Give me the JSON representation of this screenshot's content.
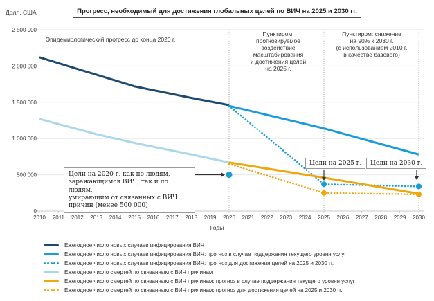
{
  "chart_data": {
    "type": "line",
    "title": "Прогресс, необходимый для достижения глобальных целей по ВИЧ на 2025 и 2030 гг.",
    "y_unit_label": "Долл. США",
    "xlabel": "Годы",
    "ylim": [
      0,
      2500000
    ],
    "grid": true,
    "yticks": [
      {
        "value": 2500000,
        "label": "2 500 000"
      },
      {
        "value": 2000000,
        "label": "2 000 000"
      },
      {
        "value": 1500000,
        "label": "1 500 000"
      },
      {
        "value": 1000000,
        "label": "1 000 000"
      },
      {
        "value": 500000,
        "label": "500 000"
      },
      {
        "value": 0,
        "label": "0"
      }
    ],
    "x_years": [
      2010,
      2011,
      2012,
      2013,
      2014,
      2015,
      2016,
      2017,
      2018,
      2019,
      2020,
      2021,
      2022,
      2023,
      2024,
      2025,
      2026,
      2027,
      2028,
      2029,
      2030
    ],
    "guide_years": [
      2020,
      2025,
      2030
    ],
    "series": [
      {
        "name": "new-infections-actual",
        "label": "Ежегодное число новых случаев инфицирования ВИЧ",
        "color": "#1b4a6e",
        "style": "solid",
        "points": [
          [
            2010,
            2120000
          ],
          [
            2013,
            1880000
          ],
          [
            2015,
            1720000
          ],
          [
            2018,
            1560000
          ],
          [
            2020,
            1460000
          ]
        ]
      },
      {
        "name": "new-infections-forecast-current-services",
        "label": "Ежегодное число новых случаев инфицирования ВИЧ: прогноз в случае поддержания текущего уровня услуг",
        "color": "#1a9cd8",
        "style": "solid",
        "points": [
          [
            2020,
            1450000
          ],
          [
            2025,
            1140000
          ],
          [
            2030,
            780000
          ]
        ]
      },
      {
        "name": "new-infections-target",
        "label": "Ежегодное число новых случаев инфицирования ВИЧ: прогноз для достижения целей на 2025 и 2030 гг.",
        "color": "#1a9cd8",
        "style": "dotted",
        "points": [
          [
            2020,
            1450000
          ],
          [
            2025,
            370000
          ],
          [
            2030,
            340000
          ]
        ],
        "markers": [
          [
            2025,
            370000
          ],
          [
            2030,
            340000
          ]
        ]
      },
      {
        "name": "deaths-actual",
        "label": "Ежегодное число смертей по связанным с ВИЧ причинам",
        "color": "#abd7ea",
        "style": "solid",
        "points": [
          [
            2010,
            1270000
          ],
          [
            2013,
            1060000
          ],
          [
            2015,
            940000
          ],
          [
            2018,
            780000
          ],
          [
            2020,
            670000
          ]
        ]
      },
      {
        "name": "deaths-forecast-current-services",
        "label": "Ежегодное число смертей по связанным с ВИЧ причинам: прогноз в случае поддержания текущего уровня услуг",
        "color": "#eda70f",
        "style": "solid",
        "points": [
          [
            2020,
            670000
          ],
          [
            2025,
            460000
          ],
          [
            2030,
            240000
          ]
        ]
      },
      {
        "name": "deaths-target",
        "label": "Ежегодное число смертей по связанным с ВИЧ причинам: прогноз для достижения целей на 2025 и 2030 гг.",
        "color": "#eda70f",
        "style": "dotted",
        "points": [
          [
            2020,
            650000
          ],
          [
            2025,
            250000
          ],
          [
            2030,
            230000
          ]
        ],
        "markers": [
          [
            2025,
            250000
          ],
          [
            2030,
            230000
          ]
        ]
      }
    ],
    "target_2020_marker": {
      "year": 2020,
      "value": 500000,
      "color": "#1a9cd8"
    },
    "annotations": {
      "left": "Эпидемиологический прогресс до конца 2020 г.",
      "middle": "Пунктиром:\nпрогнозируемое\nвоздействие\nмасштабирования\nи достижения целей\nна 2025 г.",
      "right": "Пунктиром: снижение\nна 90% к 2030 г.\n(с использованием 2010 г.\nв качестве базового)"
    },
    "callouts": {
      "target_2020": "Цели на 2020 г. как по людям,\nзаражающимся ВИЧ, так и по людям,\nумирающим от связанных с ВИЧ\nпричин (менее 500 000)",
      "target_2025": "Цели на 2025 г.",
      "target_2030": "Цели на 2030 г."
    },
    "colors": {
      "navy": "#1b4a6e",
      "blue": "#1a9cd8",
      "light_blue": "#abd7ea",
      "orange": "#eda70f",
      "grid": "#e7e7e7",
      "axis": "#c9c9c9",
      "guide": "#9b9b9b",
      "text": "#3c3c3c"
    }
  }
}
